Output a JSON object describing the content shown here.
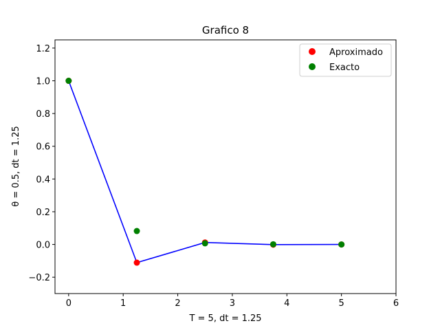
{
  "chart_data": {
    "type": "scatter",
    "title": "Grafico 8",
    "xlabel": "T = 5, dt = 1.25",
    "ylabel": "θ = 0.5,  dt = 1.25",
    "xlim": [
      -0.25,
      6.0
    ],
    "ylim": [
      -0.3,
      1.25
    ],
    "xticks": [
      0,
      1,
      2,
      3,
      4,
      5,
      6
    ],
    "yticks": [
      -0.2,
      0.0,
      0.2,
      0.4,
      0.6,
      0.8,
      1.0,
      1.2
    ],
    "grid": false,
    "legend_position": "top-right",
    "series": [
      {
        "name": "Aproximado",
        "kind": "scatter",
        "color": "#ff0000",
        "x": [
          0,
          1.25,
          2.5,
          3.75,
          5.0
        ],
        "y": [
          1.0,
          -0.111,
          0.012,
          -0.001,
          0.0
        ]
      },
      {
        "name": "Exacto",
        "kind": "scatter",
        "color": "#008000",
        "x": [
          0,
          1.25,
          2.5,
          3.75,
          5.0
        ],
        "y": [
          1.0,
          0.082,
          0.007,
          0.001,
          0.0
        ]
      },
      {
        "kind": "line",
        "color": "#0000ff",
        "x": [
          0,
          1.25,
          2.5,
          3.75,
          5.0
        ],
        "y": [
          1.0,
          -0.111,
          0.012,
          -0.001,
          0.0
        ]
      }
    ]
  }
}
